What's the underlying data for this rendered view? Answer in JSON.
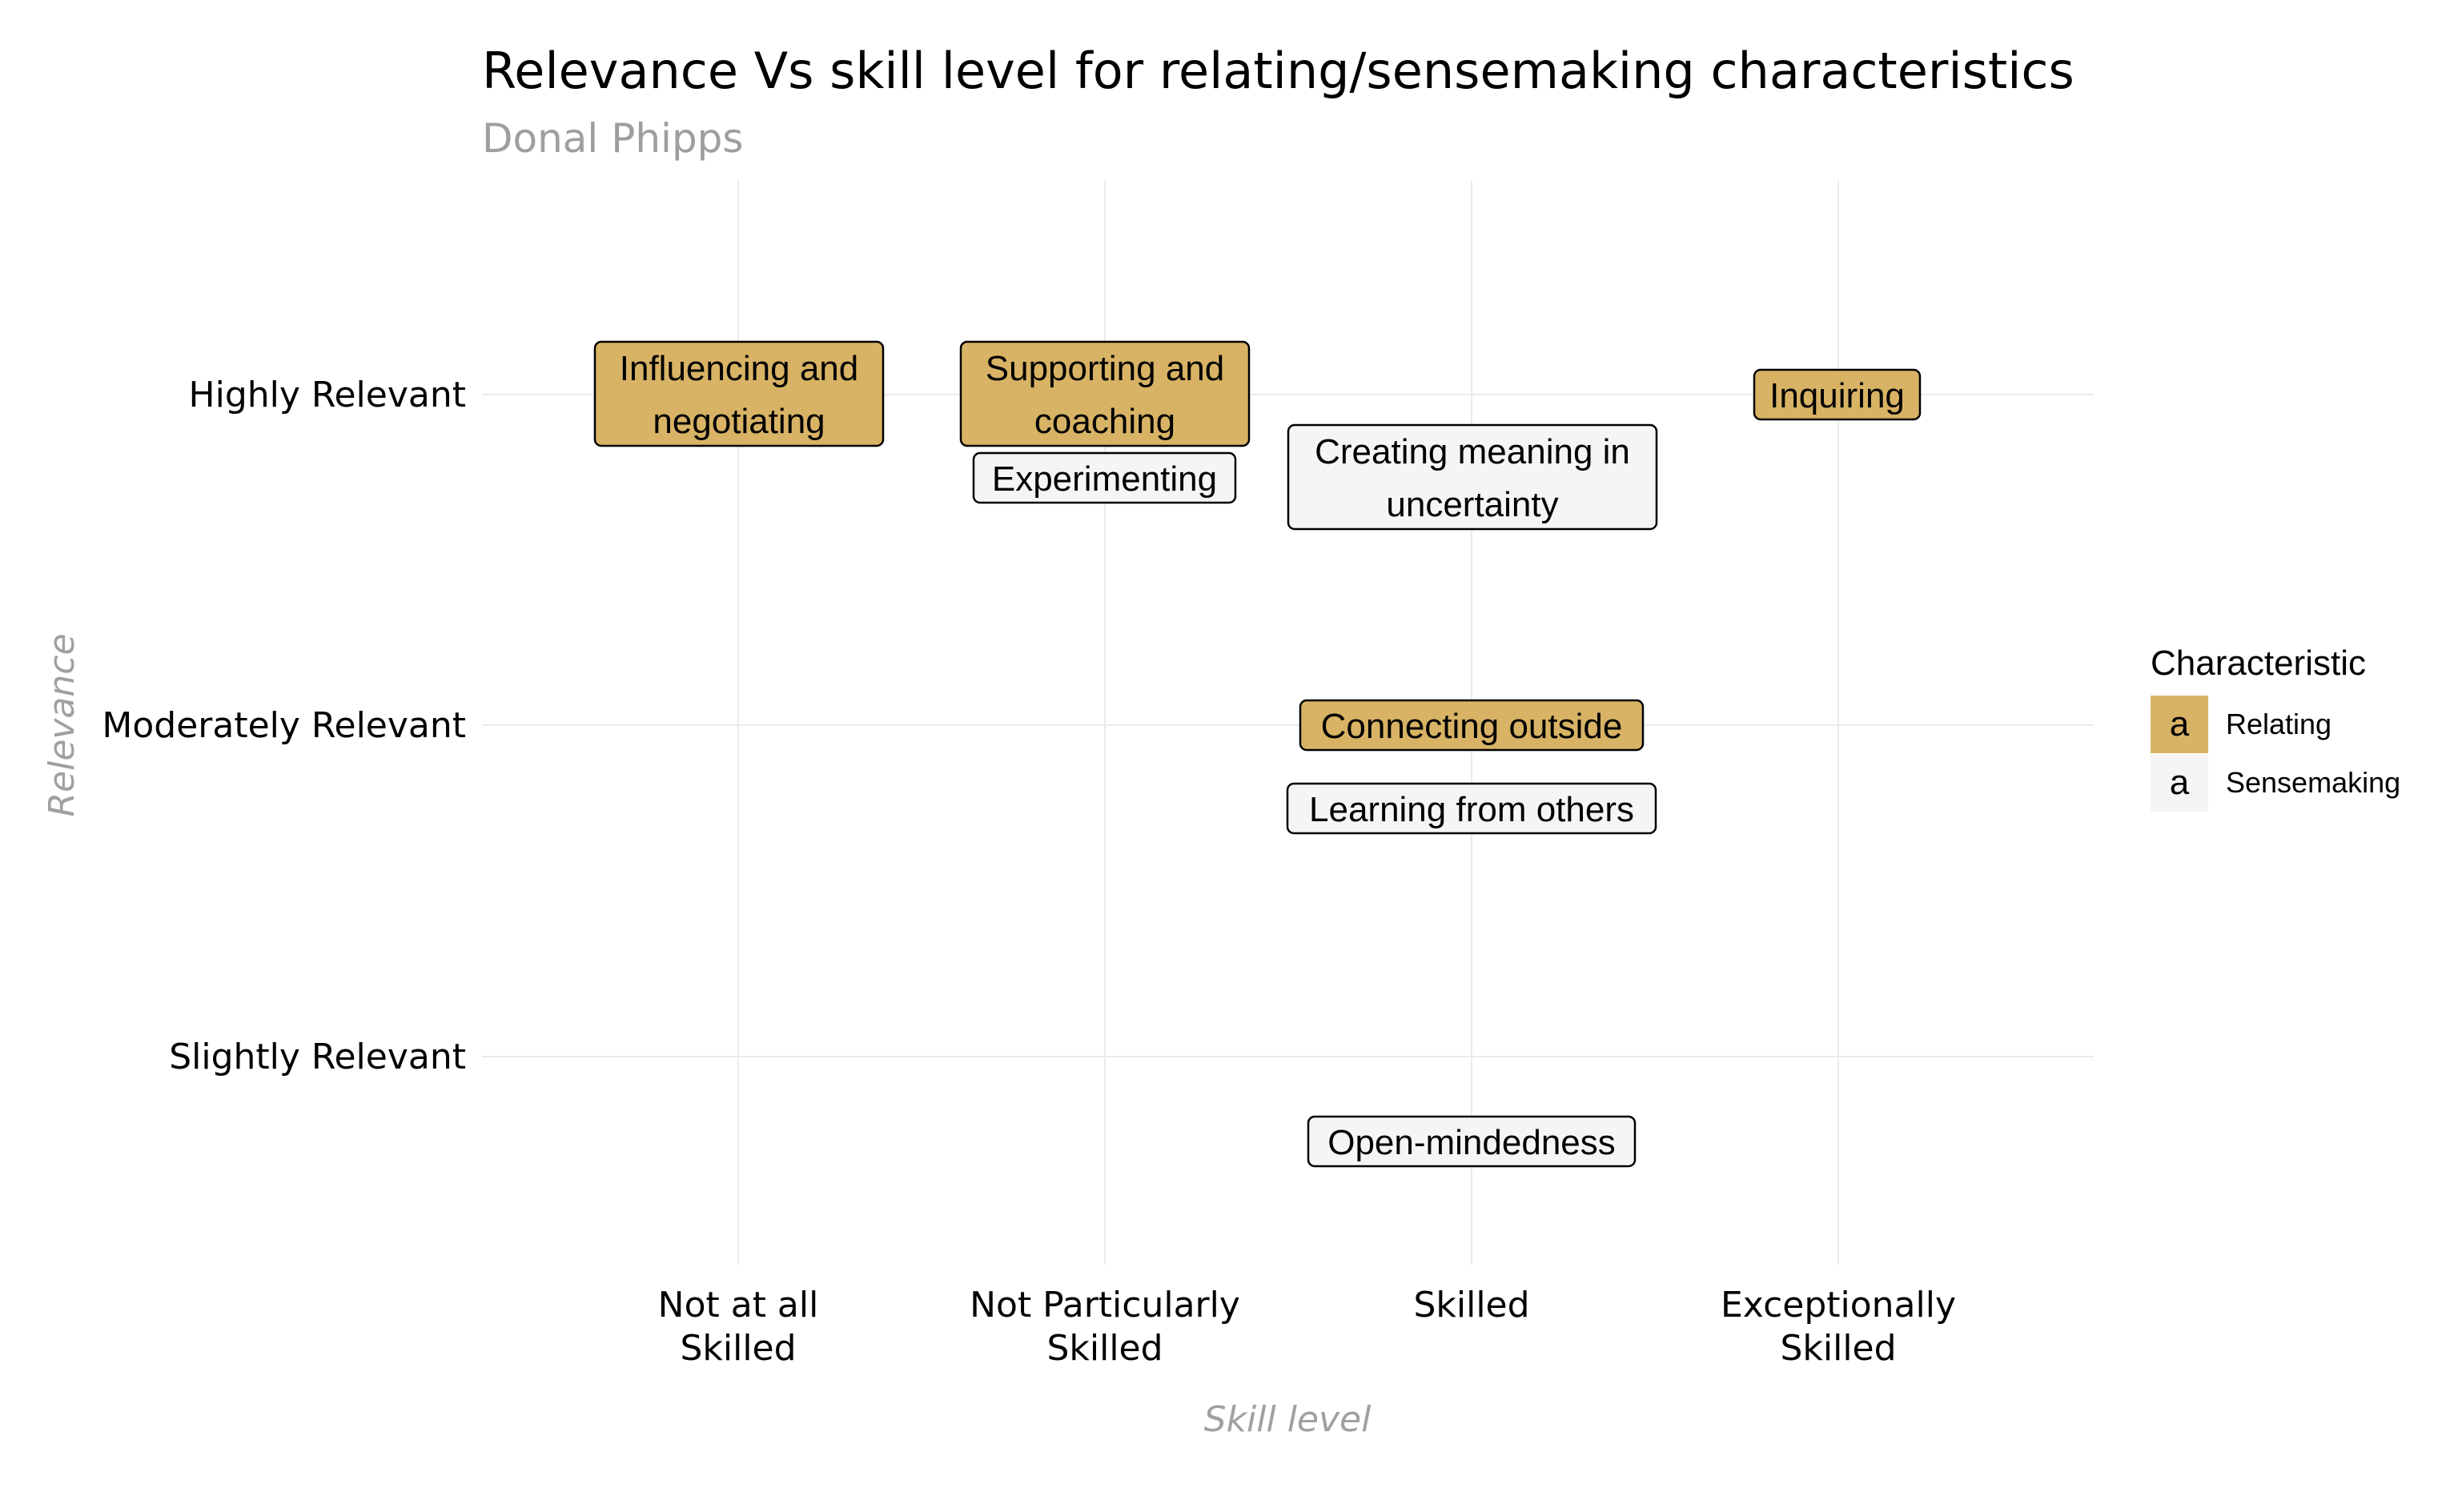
{
  "chart_data": {
    "type": "scatter",
    "title": "Relevance Vs skill level for relating/sensemaking characteristics",
    "subtitle": "Donal Phipps",
    "xlabel": "Skill level",
    "ylabel": "Relevance",
    "x_categories": [
      [
        "Not at all",
        "Skilled"
      ],
      [
        "Not Particularly",
        "Skilled"
      ],
      [
        "Skilled"
      ],
      [
        "Exceptionally",
        "Skilled"
      ]
    ],
    "y_categories": [
      "Slightly Relevant",
      "Moderately Relevant",
      "Highly Relevant"
    ],
    "grid": true,
    "legend": {
      "title": "Characteristic",
      "position": "right",
      "key_glyph": "a",
      "entries": [
        {
          "label": "Relating",
          "color": "#D8B365"
        },
        {
          "label": "Sensemaking",
          "color": "#F5F5F5"
        }
      ]
    },
    "points": [
      {
        "label": [
          "Influencing and",
          "negotiating"
        ],
        "x": "Not at all Skilled",
        "y": "Highly Relevant",
        "group": "Relating"
      },
      {
        "label": [
          "Supporting and",
          "coaching"
        ],
        "x": "Not Particularly Skilled",
        "y": "Highly Relevant",
        "group": "Relating"
      },
      {
        "label": [
          "Experimenting"
        ],
        "x": "Not Particularly Skilled",
        "y": "Highly Relevant",
        "group": "Sensemaking"
      },
      {
        "label": [
          "Creating meaning in",
          "uncertainty"
        ],
        "x": "Skilled",
        "y": "Highly Relevant",
        "group": "Sensemaking"
      },
      {
        "label": [
          "Inquiring"
        ],
        "x": "Exceptionally Skilled",
        "y": "Highly Relevant",
        "group": "Relating"
      },
      {
        "label": [
          "Connecting outside"
        ],
        "x": "Skilled",
        "y": "Moderately Relevant",
        "group": "Relating"
      },
      {
        "label": [
          "Learning from others"
        ],
        "x": "Skilled",
        "y": "Moderately Relevant",
        "group": "Sensemaking"
      },
      {
        "label": [
          "Open-mindedness"
        ],
        "x": "Skilled",
        "y": "Slightly Relevant",
        "group": "Sensemaking"
      }
    ]
  }
}
